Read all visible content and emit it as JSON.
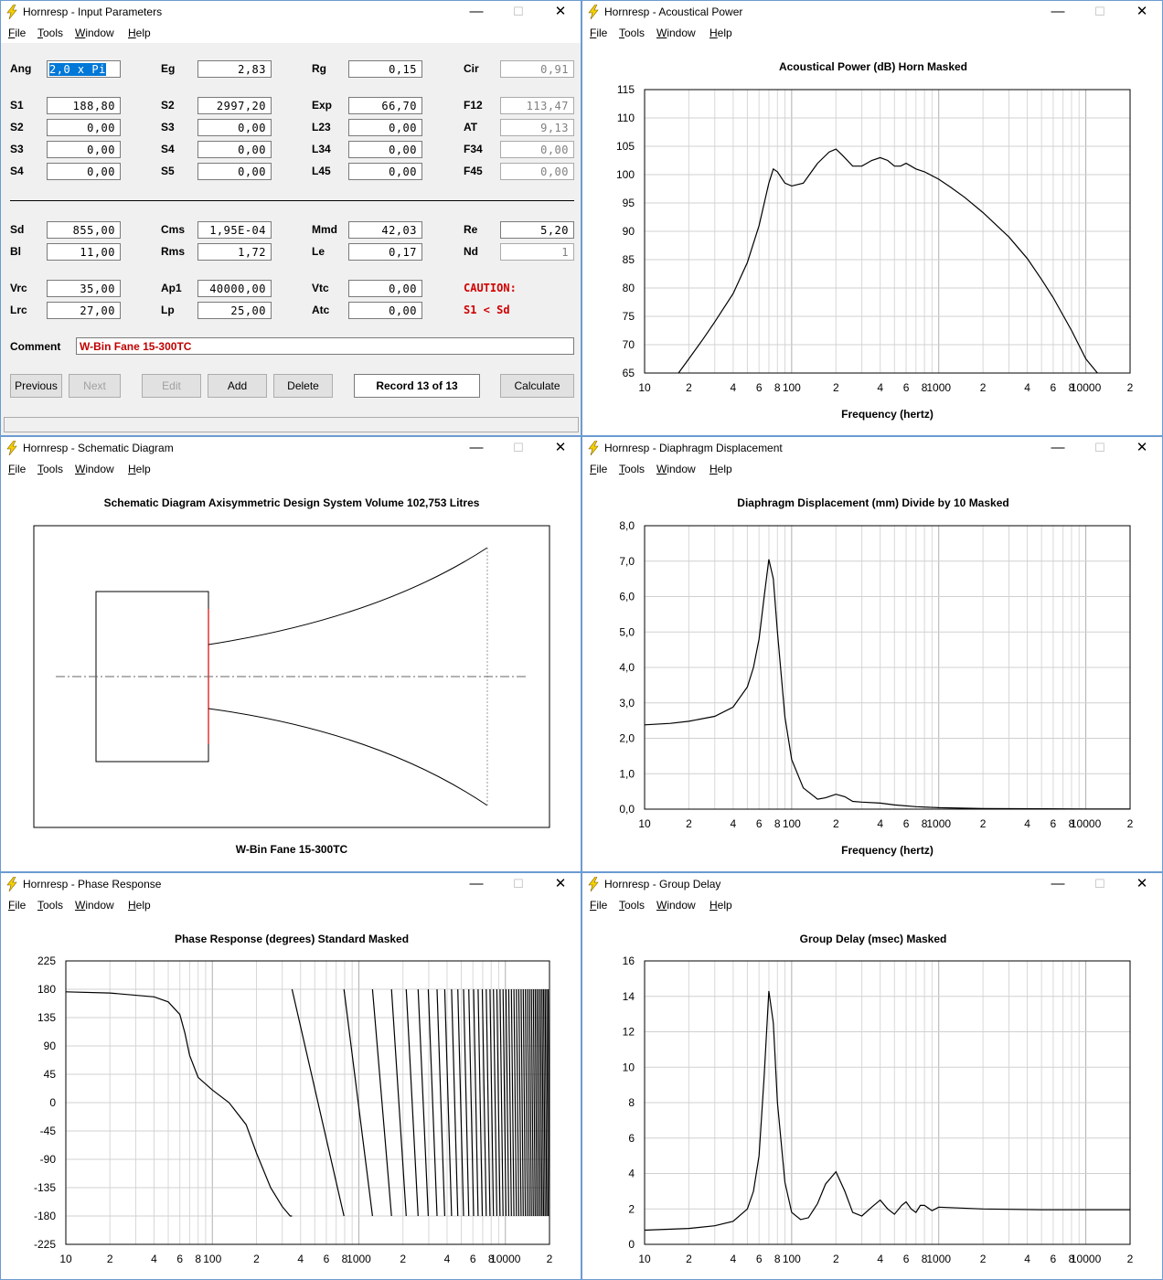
{
  "menu": [
    "File",
    "Tools",
    "Window",
    "Help"
  ],
  "windows": {
    "input": {
      "title": "Hornresp - Input Parameters"
    },
    "acoustic": {
      "title": "Hornresp - Acoustical Power"
    },
    "schematic": {
      "title": "Hornresp - Schematic Diagram"
    },
    "diaphragm": {
      "title": "Hornresp - Diaphragm Displacement"
    },
    "phase": {
      "title": "Hornresp - Phase Response"
    },
    "group": {
      "title": "Hornresp - Group Delay"
    }
  },
  "window_controls": {
    "min": "—",
    "max": "☐",
    "close": "✕"
  },
  "params": {
    "ang": {
      "label": "Ang",
      "value": "2,0 x Pi"
    },
    "eg": {
      "label": "Eg",
      "value": "2,83"
    },
    "rg": {
      "label": "Rg",
      "value": "0,15"
    },
    "cir": {
      "label": "Cir",
      "value": "0,91"
    },
    "s1": {
      "label": "S1",
      "value": "188,80"
    },
    "s2a": {
      "label": "S2",
      "value": "2997,20"
    },
    "exp": {
      "label": "Exp",
      "value": "66,70"
    },
    "f12": {
      "label": "F12",
      "value": "113,47"
    },
    "s2b": {
      "label": "S2",
      "value": "0,00"
    },
    "s3a": {
      "label": "S3",
      "value": "0,00"
    },
    "l23": {
      "label": "L23",
      "value": "0,00"
    },
    "at": {
      "label": "AT",
      "value": "9,13"
    },
    "s3b": {
      "label": "S3",
      "value": "0,00"
    },
    "s4a": {
      "label": "S4",
      "value": "0,00"
    },
    "l34": {
      "label": "L34",
      "value": "0,00"
    },
    "f34": {
      "label": "F34",
      "value": "0,00"
    },
    "s4b": {
      "label": "S4",
      "value": "0,00"
    },
    "s5": {
      "label": "S5",
      "value": "0,00"
    },
    "l45": {
      "label": "L45",
      "value": "0,00"
    },
    "f45": {
      "label": "F45",
      "value": "0,00"
    },
    "sd": {
      "label": "Sd",
      "value": "855,00"
    },
    "cms": {
      "label": "Cms",
      "value": "1,95E-04"
    },
    "mmd": {
      "label": "Mmd",
      "value": "42,03"
    },
    "re": {
      "label": "Re",
      "value": "5,20"
    },
    "bl": {
      "label": "Bl",
      "value": "11,00"
    },
    "rms": {
      "label": "Rms",
      "value": "1,72"
    },
    "le": {
      "label": "Le",
      "value": "0,17"
    },
    "nd": {
      "label": "Nd",
      "value": "1"
    },
    "vrc": {
      "label": "Vrc",
      "value": "35,00"
    },
    "ap1": {
      "label": "Ap1",
      "value": "40000,00"
    },
    "vtc": {
      "label": "Vtc",
      "value": "0,00"
    },
    "lrc": {
      "label": "Lrc",
      "value": "27,00"
    },
    "lp": {
      "label": "Lp",
      "value": "25,00"
    },
    "atc": {
      "label": "Atc",
      "value": "0,00"
    }
  },
  "caution": {
    "title": "CAUTION:",
    "message": "S1 < Sd"
  },
  "comment": {
    "label": "Comment",
    "value": "W-Bin Fane 15-300TC"
  },
  "buttons": {
    "previous": "Previous",
    "next": "Next",
    "edit": "Edit",
    "add": "Add",
    "delete": "Delete",
    "record": "Record 13 of 13",
    "calculate": "Calculate"
  },
  "freq_ticks": [
    "10",
    "2",
    "4",
    "6",
    "8",
    "100",
    "2",
    "4",
    "6",
    "8",
    "1000",
    "2",
    "4",
    "6",
    "8",
    "10000",
    "2"
  ],
  "schematic": {
    "title": "Schematic Diagram   Axisymmetric Design   System Volume 102,753 Litres",
    "caption": "W-Bin Fane 15-300TC"
  },
  "chart_data": [
    {
      "type": "line",
      "id": "acoustic",
      "title": "Acoustical Power (dB)   Horn   Masked",
      "xlabel": "Frequency (hertz)",
      "xscale": "log",
      "xlim": [
        10,
        20000
      ],
      "ylim": [
        65,
        115
      ],
      "yticks": [
        "115",
        "110",
        "105",
        "100",
        "95",
        "90",
        "85",
        "80",
        "75",
        "70",
        "65"
      ],
      "grid": true,
      "x": [
        17,
        20,
        25,
        30,
        40,
        50,
        60,
        70,
        75,
        80,
        90,
        100,
        120,
        150,
        180,
        200,
        220,
        260,
        300,
        350,
        400,
        450,
        500,
        550,
        600,
        700,
        800,
        1000,
        1200,
        1500,
        2000,
        3000,
        4000,
        5000,
        6000,
        8000,
        10000,
        12000,
        15000
      ],
      "y": [
        65,
        67.5,
        71,
        74,
        79,
        84.5,
        91,
        98.5,
        101,
        100.5,
        98.5,
        98,
        98.5,
        102,
        104,
        104.5,
        103.5,
        101.5,
        101.5,
        102.5,
        103,
        102.5,
        101.5,
        101.5,
        102,
        101,
        100.5,
        99.2,
        97.8,
        96,
        93.3,
        89,
        85.2,
        81.5,
        78.3,
        72.5,
        67.5,
        65,
        63
      ]
    },
    {
      "type": "line",
      "id": "diaphragm",
      "title": "Diaphragm Displacement (mm)   Divide by 10   Masked",
      "xlabel": "Frequency (hertz)",
      "xscale": "log",
      "xlim": [
        10,
        20000
      ],
      "ylim": [
        0,
        8
      ],
      "yticks": [
        "8,0",
        "7,0",
        "6,0",
        "5,0",
        "4,0",
        "3,0",
        "2,0",
        "1,0",
        "0,0"
      ],
      "grid": true,
      "x": [
        10,
        15,
        20,
        30,
        40,
        50,
        55,
        60,
        65,
        70,
        75,
        80,
        90,
        100,
        120,
        150,
        170,
        200,
        230,
        260,
        300,
        400,
        500,
        700,
        1000,
        2000,
        5000,
        10000,
        20000
      ],
      "y": [
        2.38,
        2.42,
        2.48,
        2.62,
        2.88,
        3.45,
        4.0,
        4.8,
        6.0,
        7.05,
        6.5,
        5.0,
        2.6,
        1.4,
        0.6,
        0.28,
        0.32,
        0.42,
        0.35,
        0.22,
        0.2,
        0.17,
        0.12,
        0.07,
        0.04,
        0.015,
        0.01,
        0.005,
        0.003
      ]
    },
    {
      "type": "line",
      "id": "phase",
      "title": "Phase Response (degrees)   Standard   Masked",
      "xscale": "log",
      "xlim": [
        10,
        20000
      ],
      "ylim": [
        -225,
        225
      ],
      "yticks": [
        "225",
        "180",
        "135",
        "90",
        "45",
        "0",
        "-45",
        "-90",
        "-135",
        "-180",
        "-225"
      ],
      "grid": true,
      "x": [
        10,
        20,
        40,
        50,
        60,
        65,
        70,
        80,
        100,
        130,
        170,
        200,
        250,
        300,
        340,
        350
      ],
      "y": [
        176,
        174,
        168,
        160,
        140,
        110,
        75,
        40,
        20,
        0,
        -35,
        -80,
        -135,
        -165,
        -180,
        180
      ]
    },
    {
      "type": "line",
      "id": "group",
      "title": "Group Delay (msec)   Masked",
      "xlabel": "",
      "xscale": "log",
      "xlim": [
        10,
        20000
      ],
      "ylim": [
        0,
        16
      ],
      "yticks": [
        "16",
        "14",
        "12",
        "10",
        "8",
        "6",
        "4",
        "2",
        "0"
      ],
      "grid": true,
      "x": [
        10,
        20,
        30,
        40,
        50,
        55,
        60,
        65,
        70,
        75,
        80,
        90,
        100,
        115,
        130,
        150,
        170,
        200,
        230,
        260,
        300,
        350,
        400,
        450,
        500,
        560,
        600,
        650,
        700,
        750,
        800,
        900,
        1000,
        2000,
        5000,
        10000,
        20000
      ],
      "y": [
        0.8,
        0.9,
        1.05,
        1.3,
        2.0,
        3.0,
        5.0,
        9.5,
        14.3,
        12.5,
        8.0,
        3.5,
        1.8,
        1.4,
        1.5,
        2.3,
        3.4,
        4.1,
        3.0,
        1.8,
        1.6,
        2.1,
        2.5,
        2.0,
        1.7,
        2.2,
        2.4,
        2.0,
        1.8,
        2.2,
        2.2,
        1.9,
        2.1,
        2.0,
        1.95,
        1.95,
        1.95
      ]
    }
  ]
}
